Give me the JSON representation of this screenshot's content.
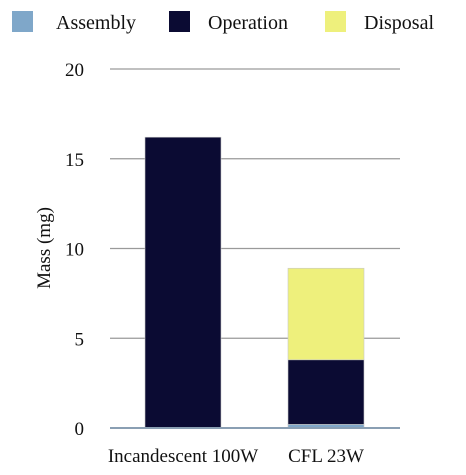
{
  "chart_data": {
    "type": "bar",
    "stacked": true,
    "title": "",
    "xlabel": "",
    "ylabel": "Mass (mg)",
    "ylim": [
      0,
      20
    ],
    "yticks": [
      0,
      5,
      10,
      15,
      20
    ],
    "grid": true,
    "legend_position": "top",
    "categories": [
      "Incandescent 100W",
      "CFL 23W"
    ],
    "series": [
      {
        "name": "Assembly",
        "color": "#7fa7c9",
        "values": [
          0.0,
          0.2
        ]
      },
      {
        "name": "Operation",
        "color": "#0b0b33",
        "values": [
          16.2,
          3.6
        ]
      },
      {
        "name": "Disposal",
        "color": "#eef07c",
        "values": [
          0.0,
          5.1
        ]
      }
    ]
  }
}
